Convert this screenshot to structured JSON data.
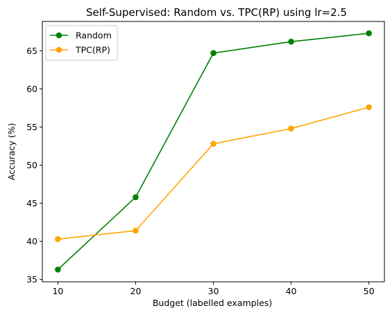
{
  "chart_data": {
    "type": "line",
    "title": "Self-Supervised: Random vs. TPC(RP) using lr=2.5",
    "xlabel": "Budget (labelled examples)",
    "ylabel": "Accuracy (%)",
    "x": [
      10,
      20,
      30,
      40,
      50
    ],
    "xticks": [
      10,
      20,
      30,
      40,
      50
    ],
    "yticks": [
      35,
      40,
      45,
      50,
      55,
      60,
      65
    ],
    "xlim": [
      8,
      52
    ],
    "ylim": [
      34.7,
      68.85
    ],
    "grid": false,
    "legend_position": "top-left",
    "series": [
      {
        "name": "Random",
        "color": "#008000",
        "marker": "circle",
        "values": [
          36.3,
          45.8,
          64.7,
          66.2,
          67.3
        ]
      },
      {
        "name": "TPC(RP)",
        "color": "#ffa500",
        "marker": "circle",
        "values": [
          40.3,
          41.4,
          52.8,
          54.8,
          57.6
        ]
      }
    ]
  }
}
